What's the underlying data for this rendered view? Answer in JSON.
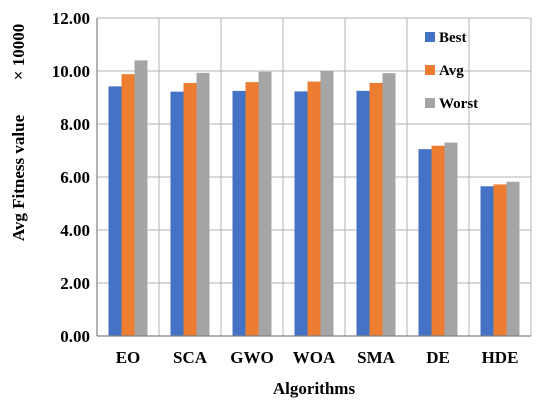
{
  "chart_data": {
    "type": "bar",
    "categories": [
      "EO",
      "SCA",
      "GWO",
      "WOA",
      "SMA",
      "DE",
      "HDE"
    ],
    "series": [
      {
        "name": "Best",
        "color": "#4472C4",
        "values": [
          9.42,
          9.22,
          9.25,
          9.23,
          9.25,
          7.05,
          5.65
        ]
      },
      {
        "name": "Avg",
        "color": "#ED7D31",
        "values": [
          9.88,
          9.55,
          9.58,
          9.6,
          9.55,
          7.18,
          5.72
        ]
      },
      {
        "name": "Worst",
        "color": "#A5A5A5",
        "values": [
          10.4,
          9.93,
          9.97,
          10.0,
          9.92,
          7.3,
          5.82
        ]
      }
    ],
    "xlabel": "Algorithms",
    "ylabel": "Avg Fitness value",
    "y_multiplier": "× 10000",
    "ylim": [
      0,
      12
    ],
    "yticks": [
      "0.00",
      "2.00",
      "4.00",
      "6.00",
      "8.00",
      "10.00",
      "12.00"
    ],
    "grid": true,
    "legend_position": "top-right"
  }
}
